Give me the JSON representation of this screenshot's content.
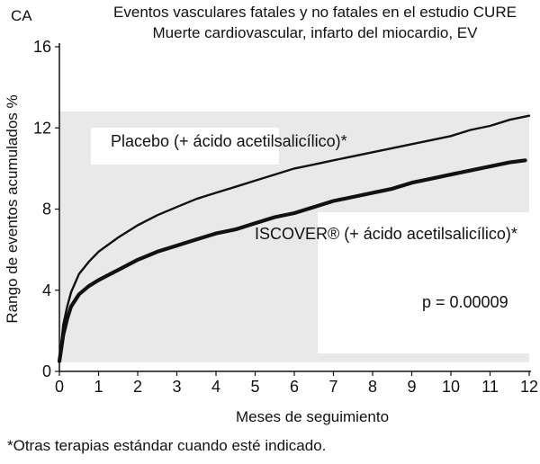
{
  "corner_label": "CA",
  "footnote": "*Otras terapias estándar cuando esté indicado.",
  "chart_data": {
    "type": "line",
    "title": "Eventos vasculares fatales y no fatales en el estudio CURE",
    "subtitle": "Muerte cardiovascular, infarto del miocardio, EV",
    "xlabel": "Meses de seguimiento",
    "ylabel": "Rango de eventos acumulados %",
    "xlim": [
      0,
      12
    ],
    "ylim": [
      0,
      16
    ],
    "xticks": [
      0,
      1,
      2,
      3,
      4,
      5,
      6,
      7,
      8,
      9,
      10,
      11,
      12
    ],
    "yticks": [
      0,
      4,
      8,
      12,
      16
    ],
    "grid": false,
    "series": [
      {
        "name": "Placebo (+ ácido acetilsalicílico)*",
        "color": "#111111",
        "x": [
          0,
          0.1,
          0.2,
          0.3,
          0.5,
          0.75,
          1,
          1.5,
          2,
          2.5,
          3,
          3.5,
          4,
          4.5,
          5,
          5.5,
          6,
          6.5,
          7,
          7.5,
          8,
          8.5,
          9,
          9.5,
          10,
          10.5,
          11,
          11.5,
          12
        ],
        "y": [
          0.5,
          2.3,
          3.2,
          3.9,
          4.8,
          5.4,
          5.9,
          6.6,
          7.2,
          7.7,
          8.1,
          8.5,
          8.8,
          9.1,
          9.4,
          9.7,
          10.0,
          10.2,
          10.4,
          10.6,
          10.8,
          11.0,
          11.2,
          11.4,
          11.6,
          11.9,
          12.1,
          12.4,
          12.6
        ]
      },
      {
        "name": "ISCOVER® (+ ácido acetilsalicílico)*",
        "color": "#111111",
        "x": [
          0,
          0.1,
          0.2,
          0.3,
          0.5,
          0.75,
          1,
          1.5,
          2,
          2.5,
          3,
          3.5,
          4,
          4.5,
          5,
          5.5,
          6,
          6.5,
          7,
          7.5,
          8,
          8.5,
          9,
          9.5,
          10,
          10.5,
          11,
          11.5,
          11.9
        ],
        "y": [
          0.5,
          1.8,
          2.6,
          3.2,
          3.8,
          4.2,
          4.5,
          5.0,
          5.5,
          5.9,
          6.2,
          6.5,
          6.8,
          7.0,
          7.3,
          7.6,
          7.8,
          8.1,
          8.4,
          8.6,
          8.8,
          9.0,
          9.3,
          9.5,
          9.7,
          9.9,
          10.1,
          10.3,
          10.4
        ]
      }
    ],
    "annotations": [
      {
        "text": "p = 0.00009"
      }
    ]
  }
}
